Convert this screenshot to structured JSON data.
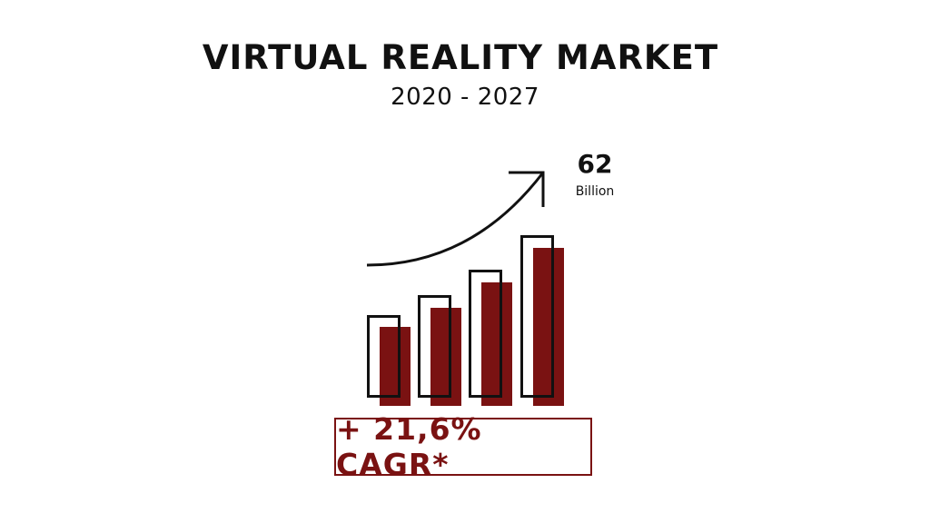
{
  "title": "VIRTUAL REALITY MARKET",
  "subtitle": "2020 - 2027",
  "forecast": {
    "value": "62",
    "unit": "Billion"
  },
  "growth_label": "+ 21,6% CAGR*",
  "icons": [
    "rising-arrow-icon",
    "bar-growth-icon"
  ],
  "colors": {
    "accent": "#7a1212",
    "text": "#111111"
  }
}
